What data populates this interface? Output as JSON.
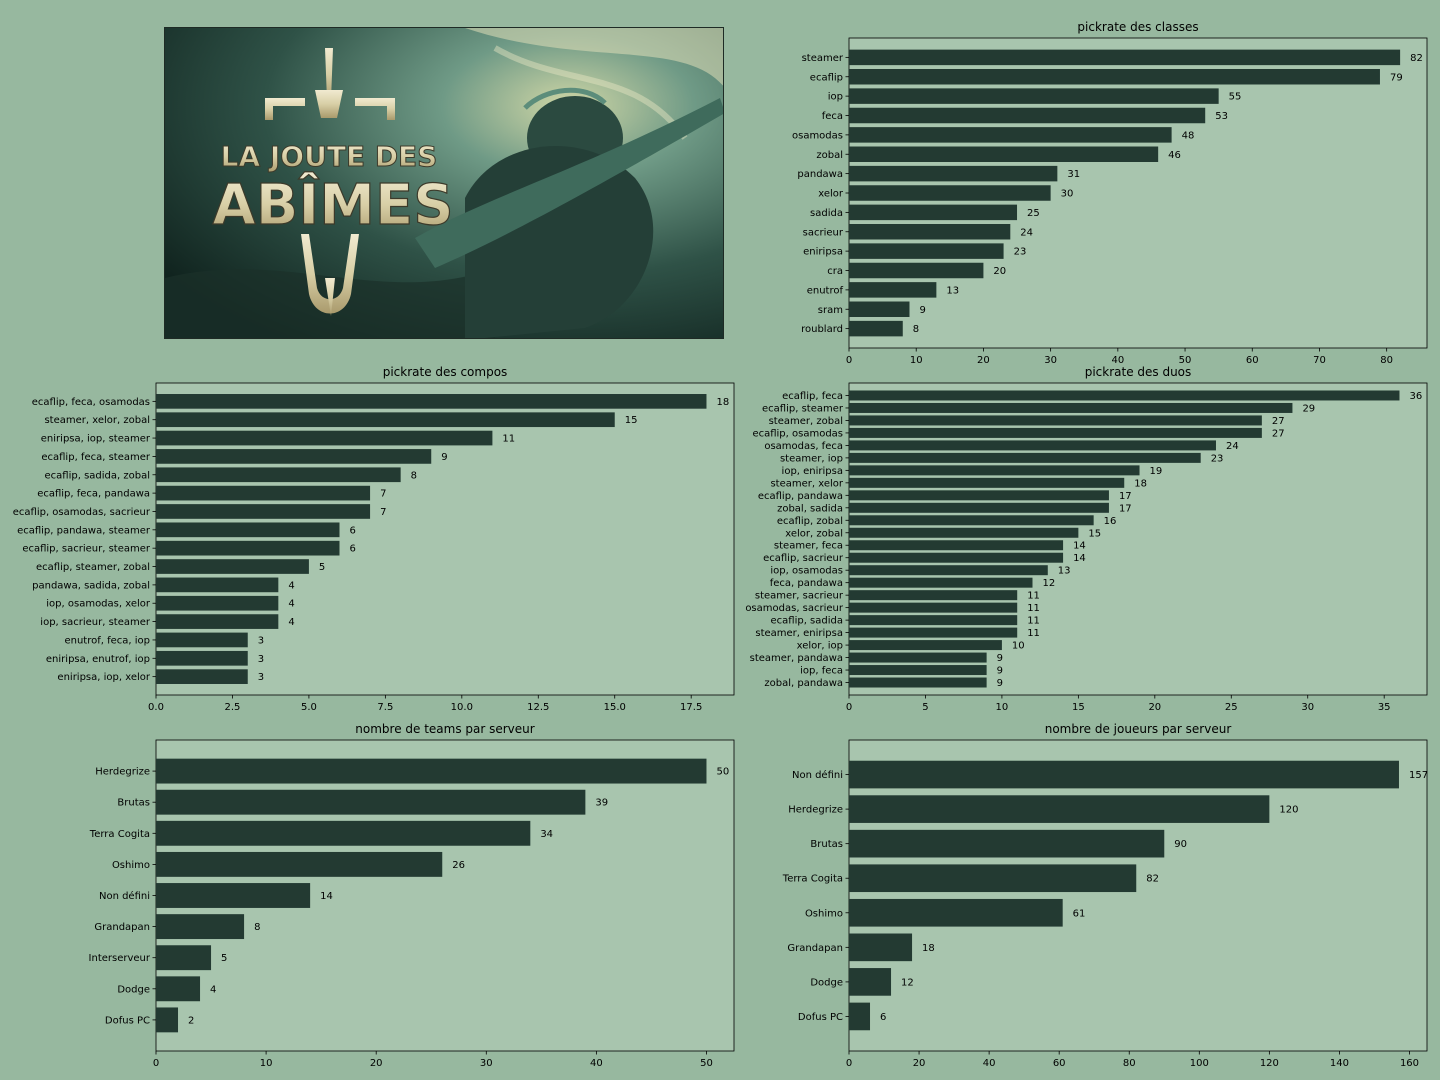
{
  "banner": {
    "line1": "LA JOUTE DES",
    "line2": "ABÎMES"
  },
  "chart_data": [
    {
      "id": "classes",
      "type": "bar",
      "orientation": "horizontal",
      "title": "pickrate des classes",
      "categories": [
        "steamer",
        "ecaflip",
        "iop",
        "feca",
        "osamodas",
        "zobal",
        "pandawa",
        "xelor",
        "sadida",
        "sacrieur",
        "eniripsa",
        "cra",
        "enutrof",
        "sram",
        "roublard"
      ],
      "values": [
        82,
        79,
        55,
        53,
        48,
        46,
        31,
        30,
        25,
        24,
        23,
        20,
        13,
        9,
        8
      ],
      "xlim": [
        0,
        86
      ],
      "xticks": [
        0,
        10,
        20,
        30,
        40,
        50,
        60,
        70,
        80
      ],
      "grid": false,
      "colors": {
        "bar": "#233a32",
        "plot_bg": "#a8c5ae"
      }
    },
    {
      "id": "compos",
      "type": "bar",
      "orientation": "horizontal",
      "title": "pickrate des compos",
      "categories": [
        "ecaflip, feca, osamodas",
        "steamer, xelor, zobal",
        "eniripsa, iop, steamer",
        "ecaflip, feca, steamer",
        "ecaflip, sadida, zobal",
        "ecaflip, feca, pandawa",
        "ecaflip, osamodas, sacrieur",
        "ecaflip, pandawa, steamer",
        "ecaflip, sacrieur, steamer",
        "ecaflip, steamer, zobal",
        "pandawa, sadida, zobal",
        "iop, osamodas, xelor",
        "iop, sacrieur, steamer",
        "enutrof, feca, iop",
        "eniripsa, enutrof, iop",
        "eniripsa, iop, xelor"
      ],
      "values": [
        18,
        15,
        11,
        9,
        8,
        7,
        7,
        6,
        6,
        5,
        4,
        4,
        4,
        3,
        3,
        3
      ],
      "xlim": [
        0,
        18.9
      ],
      "xticks": [
        "0.0",
        "2.5",
        "5.0",
        "7.5",
        "10.0",
        "12.5",
        "15.0",
        "17.5"
      ],
      "grid": false,
      "colors": {
        "bar": "#233a32",
        "plot_bg": "#a8c5ae"
      }
    },
    {
      "id": "duos",
      "type": "bar",
      "orientation": "horizontal",
      "title": "pickrate des duos",
      "categories": [
        "ecaflip, feca",
        "ecaflip, steamer",
        "steamer, zobal",
        "ecaflip, osamodas",
        "osamodas, feca",
        "steamer, iop",
        "iop, eniripsa",
        "steamer, xelor",
        "ecaflip, pandawa",
        "zobal, sadida",
        "ecaflip, zobal",
        "xelor, zobal",
        "steamer, feca",
        "ecaflip, sacrieur",
        "iop, osamodas",
        "feca, pandawa",
        "steamer, sacrieur",
        "osamodas, sacrieur",
        "ecaflip, sadida",
        "steamer, eniripsa",
        "xelor, iop",
        "steamer, pandawa",
        "iop, feca",
        "zobal, pandawa"
      ],
      "values": [
        36,
        29,
        27,
        27,
        24,
        23,
        19,
        18,
        17,
        17,
        16,
        15,
        14,
        14,
        13,
        12,
        11,
        11,
        11,
        11,
        10,
        9,
        9,
        9
      ],
      "xlim": [
        0,
        37.8
      ],
      "xticks": [
        0,
        5,
        10,
        15,
        20,
        25,
        30,
        35
      ],
      "grid": false,
      "colors": {
        "bar": "#233a32",
        "plot_bg": "#a8c5ae"
      }
    },
    {
      "id": "teams",
      "type": "bar",
      "orientation": "horizontal",
      "title": "nombre de teams par serveur",
      "categories": [
        "Herdegrize",
        "Brutas",
        "Terra Cogita",
        "Oshimo",
        "Non défini",
        "Grandapan",
        "Interserveur",
        "Dodge",
        "Dofus PC"
      ],
      "values": [
        50,
        39,
        34,
        26,
        14,
        8,
        5,
        4,
        2
      ],
      "xlim": [
        0,
        52.5
      ],
      "xticks": [
        0,
        10,
        20,
        30,
        40,
        50
      ],
      "grid": false,
      "colors": {
        "bar": "#233a32",
        "plot_bg": "#a8c5ae"
      }
    },
    {
      "id": "joueurs",
      "type": "bar",
      "orientation": "horizontal",
      "title": "nombre de joueurs par serveur",
      "categories": [
        "Non défini",
        "Herdegrize",
        "Brutas",
        "Terra Cogita",
        "Oshimo",
        "Grandapan",
        "Dodge",
        "Dofus PC"
      ],
      "values": [
        157,
        120,
        90,
        82,
        61,
        18,
        12,
        6
      ],
      "xlim": [
        0,
        165
      ],
      "xticks": [
        0,
        20,
        40,
        60,
        80,
        100,
        120,
        140,
        160
      ],
      "grid": false,
      "colors": {
        "bar": "#233a32",
        "plot_bg": "#a8c5ae"
      }
    }
  ]
}
